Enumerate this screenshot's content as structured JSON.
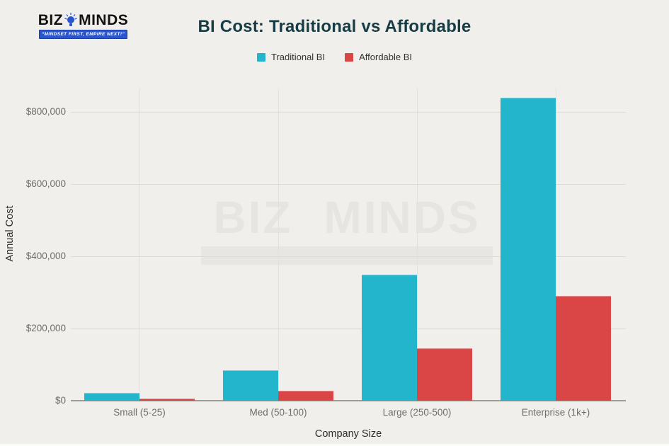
{
  "colors": {
    "background": "#f0efeb",
    "traditional_teal": "#23b5cb",
    "affordable_red": "#d94645",
    "title_text": "#173c43",
    "tick_text": "#6f6e69",
    "grid": "#dddcd4",
    "zero_axis": "#9c9b94",
    "logo_blue": "#2b55cb"
  },
  "logo": {
    "biz": "BIZ",
    "minds": "MINDS",
    "tagline": "“MINDSET FIRST, EMPIRE NEXT!”",
    "icon": "lightbulb-icon"
  },
  "title": "BI Cost: Traditional vs Affordable",
  "legend": [
    {
      "label": "Traditional BI",
      "color": "#23b5cb"
    },
    {
      "label": "Affordable BI",
      "color": "#d94645"
    }
  ],
  "watermark": {
    "biz": "BIZ",
    "minds": "MINDS"
  },
  "chart_data": {
    "type": "bar",
    "title": "BI Cost: Traditional vs Affordable",
    "categories": [
      "Small (5-25)",
      "Med (50-100)",
      "Large (250-500)",
      "Enterprise (1k+)"
    ],
    "series": [
      {
        "name": "Traditional BI",
        "color": "#23b5cb",
        "values": [
          22000,
          85000,
          350000,
          840000
        ]
      },
      {
        "name": "Affordable BI",
        "color": "#d94645",
        "values": [
          6000,
          28000,
          145000,
          290000
        ]
      }
    ],
    "xlabel": "Company Size",
    "ylabel": "Annual Cost",
    "ylim": [
      0,
      865000
    ],
    "yticks": [
      {
        "value": 0,
        "label": "$0"
      },
      {
        "value": 200000,
        "label": "$200,000"
      },
      {
        "value": 400000,
        "label": "$400,000"
      },
      {
        "value": 600000,
        "label": "$600,000"
      },
      {
        "value": 800000,
        "label": "$800,000"
      }
    ],
    "grid": true,
    "legend_position": "top"
  }
}
